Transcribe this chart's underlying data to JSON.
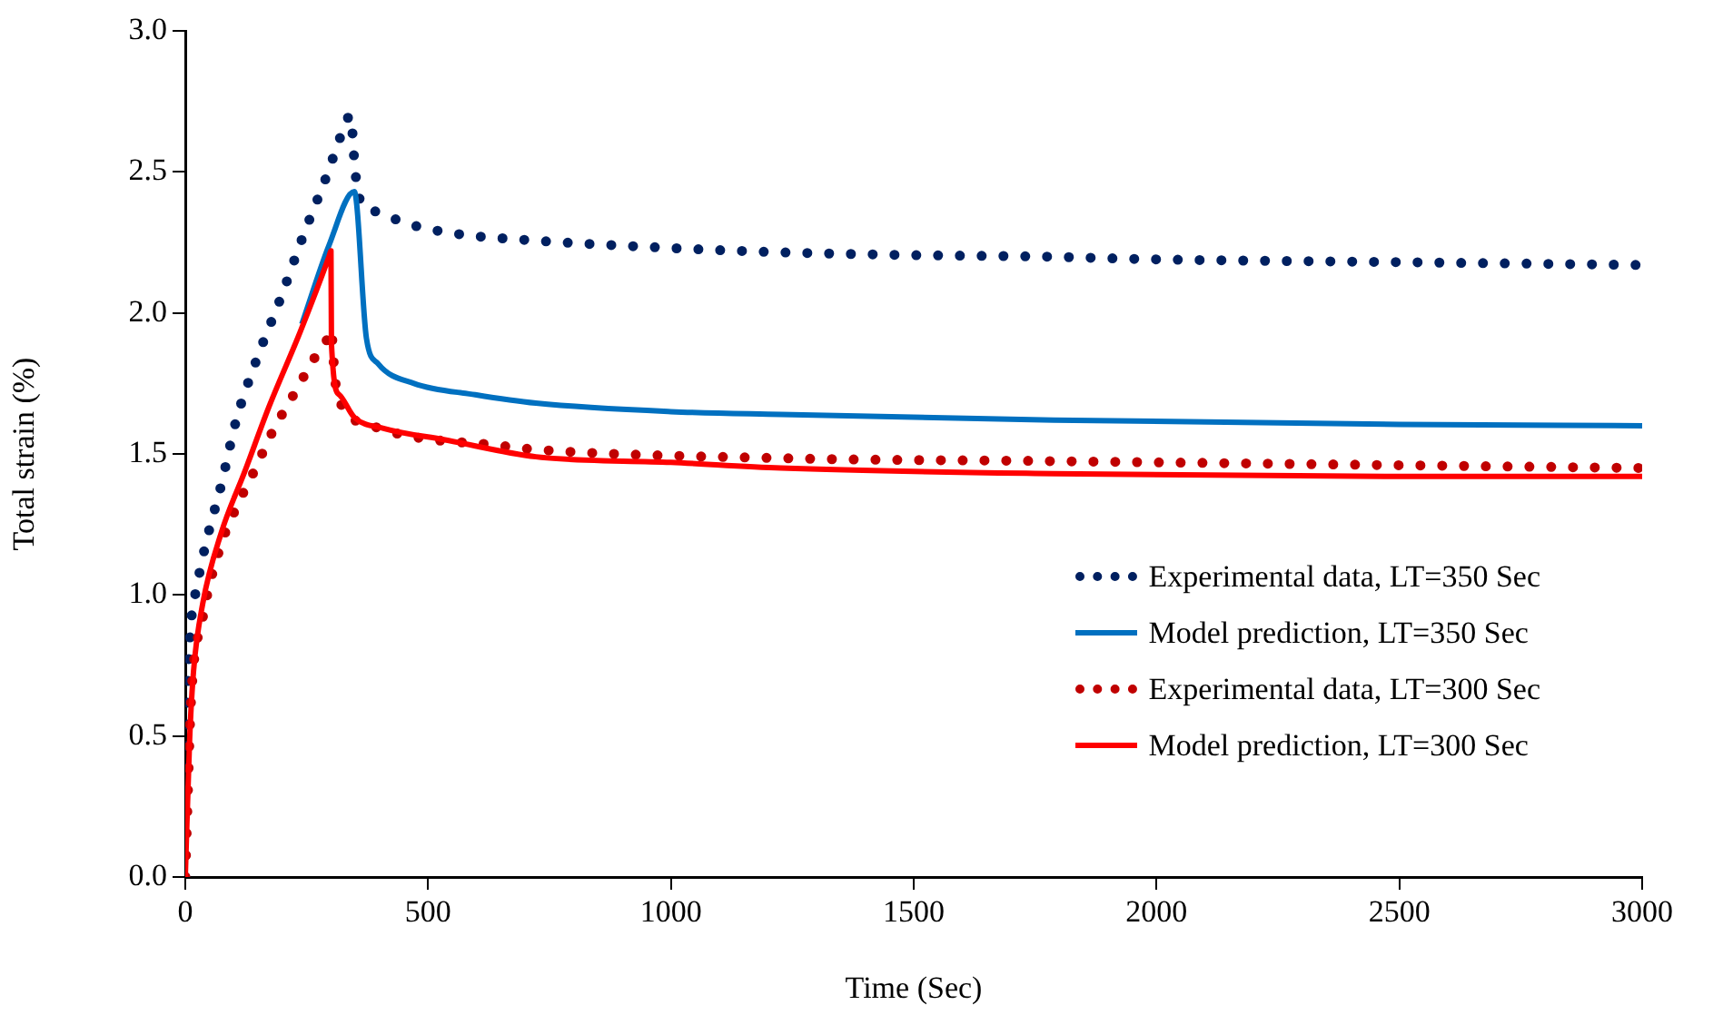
{
  "chart_data": {
    "type": "line",
    "xlabel": "Time (Sec)",
    "ylabel": "Total strain (%)",
    "xlim": [
      0,
      3000
    ],
    "xticks": [
      0,
      500,
      1000,
      1500,
      2000,
      2500,
      3000
    ],
    "ylim": [
      0,
      3
    ],
    "yticks": [
      {
        "value": 0,
        "label": "0.0"
      },
      {
        "value": 0.5,
        "label": "0.5"
      },
      {
        "value": 1,
        "label": "1.0"
      },
      {
        "value": 1.5,
        "label": "1.5"
      },
      {
        "value": 2,
        "label": "2.0"
      },
      {
        "value": 2.5,
        "label": "2.5"
      },
      {
        "value": 3,
        "label": "3.0"
      }
    ],
    "grid": false,
    "legend": "right",
    "marker": "none",
    "series": [
      {
        "name": "Experimental data, LT=350 Sec",
        "color": "#002060",
        "line_style": "dotted",
        "x": [
          0,
          5,
          11,
          24,
          42,
          74,
          105,
          148,
          198,
          242,
          292,
          323,
          340,
          350,
          360,
          391,
          471,
          560,
          691,
          1000,
          1227,
          1500,
          1757,
          2000,
          2500,
          3000
        ],
        "values": [
          0,
          0.64,
          0.88,
          1.03,
          1.18,
          1.39,
          1.62,
          1.84,
          2.06,
          2.27,
          2.49,
          2.64,
          2.7,
          2.5,
          2.4,
          2.36,
          2.31,
          2.28,
          2.26,
          2.23,
          2.215,
          2.205,
          2.2,
          2.19,
          2.18,
          2.17
        ]
      },
      {
        "name": "Model prediction, LT=350 Sec",
        "color": "#0070c0",
        "line_style": "solid",
        "x": [
          240,
          296,
          348,
          373,
          397,
          471,
          597,
          722,
          1000,
          1227,
          1788,
          2500,
          3000
        ],
        "values": [
          1.96,
          2.24,
          2.43,
          1.91,
          1.82,
          1.75,
          1.71,
          1.68,
          1.65,
          1.64,
          1.62,
          1.605,
          1.6
        ]
      },
      {
        "name": "Experimental data, LT=300 Sec",
        "color": "#c00000",
        "line_style": "dotted",
        "x": [
          0,
          5,
          11,
          36,
          74,
          105,
          142,
          180,
          223,
          266,
          296,
          300,
          308,
          317,
          385,
          471,
          647,
          691,
          1227,
          1762,
          2500,
          3000
        ],
        "values": [
          0,
          0.28,
          0.6,
          0.92,
          1.18,
          1.31,
          1.44,
          1.58,
          1.71,
          1.84,
          1.92,
          1.94,
          1.77,
          1.69,
          1.6,
          1.56,
          1.53,
          1.52,
          1.485,
          1.475,
          1.46,
          1.45
        ]
      },
      {
        "name": "Model prediction, LT=300 Sec",
        "color": "#ff0000",
        "line_style": "solid",
        "x": [
          0,
          9,
          17,
          36,
          74,
          123,
          173,
          236,
          296,
          300,
          301,
          317,
          348,
          410,
          535,
          722,
          1000,
          1227,
          1788,
          2500,
          3000
        ],
        "values": [
          0,
          0.49,
          0.73,
          0.97,
          1.22,
          1.44,
          1.67,
          1.93,
          2.2,
          2.22,
          1.89,
          1.71,
          1.63,
          1.59,
          1.55,
          1.49,
          1.47,
          1.45,
          1.43,
          1.42,
          1.42
        ]
      }
    ]
  }
}
